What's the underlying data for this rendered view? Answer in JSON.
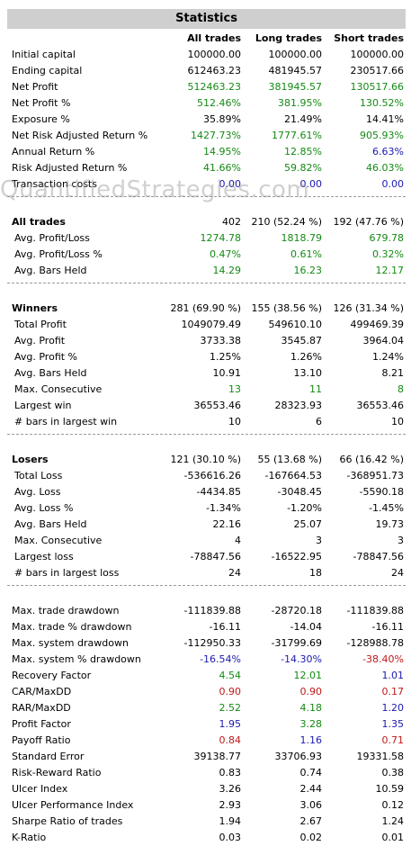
{
  "title": "Statistics",
  "watermark": "QuantifiedStrategies.com",
  "colors": {
    "green": "#138a13",
    "red": "#c01818",
    "blue": "#1a1ab0",
    "black": "#000000"
  },
  "headers": [
    "All trades",
    "Long trades",
    "Short trades"
  ],
  "rows": [
    {
      "type": "row",
      "label": "Initial capital",
      "values": [
        "100000.00",
        "100000.00",
        "100000.00"
      ],
      "colors": [
        "black",
        "black",
        "black"
      ]
    },
    {
      "type": "row",
      "label": "Ending capital",
      "values": [
        "612463.23",
        "481945.57",
        "230517.66"
      ],
      "colors": [
        "black",
        "black",
        "black"
      ]
    },
    {
      "type": "row",
      "label": "Net Profit",
      "values": [
        "512463.23",
        "381945.57",
        "130517.66"
      ],
      "colors": [
        "green",
        "green",
        "green"
      ]
    },
    {
      "type": "row",
      "label": "Net Profit %",
      "values": [
        "512.46%",
        "381.95%",
        "130.52%"
      ],
      "colors": [
        "green",
        "green",
        "green"
      ]
    },
    {
      "type": "row",
      "label": "Exposure %",
      "values": [
        "35.89%",
        "21.49%",
        "14.41%"
      ],
      "colors": [
        "black",
        "black",
        "black"
      ]
    },
    {
      "type": "row",
      "label": "Net Risk Adjusted Return %",
      "values": [
        "1427.73%",
        "1777.61%",
        "905.93%"
      ],
      "colors": [
        "green",
        "green",
        "green"
      ]
    },
    {
      "type": "row",
      "label": "Annual Return %",
      "values": [
        "14.95%",
        "12.85%",
        "6.63%"
      ],
      "colors": [
        "green",
        "green",
        "blue"
      ]
    },
    {
      "type": "row",
      "label": "Risk Adjusted Return %",
      "values": [
        "41.66%",
        "59.82%",
        "46.03%"
      ],
      "colors": [
        "green",
        "green",
        "green"
      ]
    },
    {
      "type": "row",
      "label": "Transaction costs",
      "values": [
        "0.00",
        "0.00",
        "0.00"
      ],
      "colors": [
        "blue",
        "blue",
        "blue"
      ]
    },
    {
      "type": "sep"
    },
    {
      "type": "section",
      "label": "All trades",
      "values": [
        "402",
        "210 (52.24 %)",
        "192 (47.76 %)"
      ],
      "colors": [
        "black",
        "black",
        "black"
      ]
    },
    {
      "type": "row",
      "indent": true,
      "label": "Avg. Profit/Loss",
      "values": [
        "1274.78",
        "1818.79",
        "679.78"
      ],
      "colors": [
        "green",
        "green",
        "green"
      ]
    },
    {
      "type": "row",
      "indent": true,
      "label": "Avg. Profit/Loss %",
      "values": [
        "0.47%",
        "0.61%",
        "0.32%"
      ],
      "colors": [
        "green",
        "green",
        "green"
      ]
    },
    {
      "type": "row",
      "indent": true,
      "label": "Avg. Bars Held",
      "values": [
        "14.29",
        "16.23",
        "12.17"
      ],
      "colors": [
        "green",
        "green",
        "green"
      ]
    },
    {
      "type": "sep"
    },
    {
      "type": "section",
      "label": "Winners",
      "values": [
        "281 (69.90 %)",
        "155 (38.56 %)",
        "126 (31.34 %)"
      ],
      "colors": [
        "black",
        "black",
        "black"
      ]
    },
    {
      "type": "row",
      "indent": true,
      "label": "Total Profit",
      "values": [
        "1049079.49",
        "549610.10",
        "499469.39"
      ],
      "colors": [
        "black",
        "black",
        "black"
      ]
    },
    {
      "type": "row",
      "indent": true,
      "label": "Avg. Profit",
      "values": [
        "3733.38",
        "3545.87",
        "3964.04"
      ],
      "colors": [
        "black",
        "black",
        "black"
      ]
    },
    {
      "type": "row",
      "indent": true,
      "label": "Avg. Profit %",
      "values": [
        "1.25%",
        "1.26%",
        "1.24%"
      ],
      "colors": [
        "black",
        "black",
        "black"
      ]
    },
    {
      "type": "row",
      "indent": true,
      "label": "Avg. Bars Held",
      "values": [
        "10.91",
        "13.10",
        "8.21"
      ],
      "colors": [
        "black",
        "black",
        "black"
      ]
    },
    {
      "type": "row",
      "indent": true,
      "label": "Max. Consecutive",
      "values": [
        "13",
        "11",
        "8"
      ],
      "colors": [
        "green",
        "green",
        "green"
      ]
    },
    {
      "type": "row",
      "indent": true,
      "label": "Largest win",
      "values": [
        "36553.46",
        "28323.93",
        "36553.46"
      ],
      "colors": [
        "black",
        "black",
        "black"
      ]
    },
    {
      "type": "row",
      "indent": true,
      "label": "# bars in largest win",
      "values": [
        "10",
        "6",
        "10"
      ],
      "colors": [
        "black",
        "black",
        "black"
      ]
    },
    {
      "type": "sep"
    },
    {
      "type": "section",
      "label": "Losers",
      "values": [
        "121 (30.10 %)",
        "55 (13.68 %)",
        "66 (16.42 %)"
      ],
      "colors": [
        "black",
        "black",
        "black"
      ]
    },
    {
      "type": "row",
      "indent": true,
      "label": "Total Loss",
      "values": [
        "-536616.26",
        "-167664.53",
        "-368951.73"
      ],
      "colors": [
        "black",
        "black",
        "black"
      ]
    },
    {
      "type": "row",
      "indent": true,
      "label": "Avg. Loss",
      "values": [
        "-4434.85",
        "-3048.45",
        "-5590.18"
      ],
      "colors": [
        "black",
        "black",
        "black"
      ]
    },
    {
      "type": "row",
      "indent": true,
      "label": "Avg. Loss %",
      "values": [
        "-1.34%",
        "-1.20%",
        "-1.45%"
      ],
      "colors": [
        "black",
        "black",
        "black"
      ]
    },
    {
      "type": "row",
      "indent": true,
      "label": "Avg. Bars Held",
      "values": [
        "22.16",
        "25.07",
        "19.73"
      ],
      "colors": [
        "black",
        "black",
        "black"
      ]
    },
    {
      "type": "row",
      "indent": true,
      "label": "Max. Consecutive",
      "values": [
        "4",
        "3",
        "3"
      ],
      "colors": [
        "black",
        "black",
        "black"
      ]
    },
    {
      "type": "row",
      "indent": true,
      "label": "Largest loss",
      "values": [
        "-78847.56",
        "-16522.95",
        "-78847.56"
      ],
      "colors": [
        "black",
        "black",
        "black"
      ]
    },
    {
      "type": "row",
      "indent": true,
      "label": "# bars in largest loss",
      "values": [
        "24",
        "18",
        "24"
      ],
      "colors": [
        "black",
        "black",
        "black"
      ]
    },
    {
      "type": "sep"
    },
    {
      "type": "row",
      "label": "Max. trade drawdown",
      "values": [
        "-111839.88",
        "-28720.18",
        "-111839.88"
      ],
      "colors": [
        "black",
        "black",
        "black"
      ]
    },
    {
      "type": "row",
      "label": "Max. trade % drawdown",
      "values": [
        "-16.11",
        "-14.04",
        "-16.11"
      ],
      "colors": [
        "black",
        "black",
        "black"
      ]
    },
    {
      "type": "row",
      "label": "Max. system drawdown",
      "values": [
        "-112950.33",
        "-31799.69",
        "-128988.78"
      ],
      "colors": [
        "black",
        "black",
        "black"
      ]
    },
    {
      "type": "row",
      "label": "Max. system % drawdown",
      "values": [
        "-16.54%",
        "-14.30%",
        "-38.40%"
      ],
      "colors": [
        "blue",
        "blue",
        "red"
      ]
    },
    {
      "type": "row",
      "label": "Recovery Factor",
      "values": [
        "4.54",
        "12.01",
        "1.01"
      ],
      "colors": [
        "green",
        "green",
        "blue"
      ]
    },
    {
      "type": "row",
      "label": "CAR/MaxDD",
      "values": [
        "0.90",
        "0.90",
        "0.17"
      ],
      "colors": [
        "red",
        "red",
        "red"
      ]
    },
    {
      "type": "row",
      "label": "RAR/MaxDD",
      "values": [
        "2.52",
        "4.18",
        "1.20"
      ],
      "colors": [
        "green",
        "green",
        "blue"
      ]
    },
    {
      "type": "row",
      "label": "Profit Factor",
      "values": [
        "1.95",
        "3.28",
        "1.35"
      ],
      "colors": [
        "blue",
        "green",
        "blue"
      ]
    },
    {
      "type": "row",
      "label": "Payoff Ratio",
      "values": [
        "0.84",
        "1.16",
        "0.71"
      ],
      "colors": [
        "red",
        "blue",
        "red"
      ]
    },
    {
      "type": "row",
      "label": "Standard Error",
      "values": [
        "39138.77",
        "33706.93",
        "19331.58"
      ],
      "colors": [
        "black",
        "black",
        "black"
      ]
    },
    {
      "type": "row",
      "label": "Risk-Reward Ratio",
      "values": [
        "0.83",
        "0.74",
        "0.38"
      ],
      "colors": [
        "black",
        "black",
        "black"
      ]
    },
    {
      "type": "row",
      "label": "Ulcer Index",
      "values": [
        "3.26",
        "2.44",
        "10.59"
      ],
      "colors": [
        "black",
        "black",
        "black"
      ]
    },
    {
      "type": "row",
      "label": "Ulcer Performance Index",
      "values": [
        "2.93",
        "3.06",
        "0.12"
      ],
      "colors": [
        "black",
        "black",
        "black"
      ]
    },
    {
      "type": "row",
      "label": "Sharpe Ratio of trades",
      "values": [
        "1.94",
        "2.67",
        "1.24"
      ],
      "colors": [
        "black",
        "black",
        "black"
      ]
    },
    {
      "type": "row",
      "label": "K-Ratio",
      "values": [
        "0.03",
        "0.02",
        "0.01"
      ],
      "colors": [
        "black",
        "black",
        "black"
      ]
    }
  ]
}
